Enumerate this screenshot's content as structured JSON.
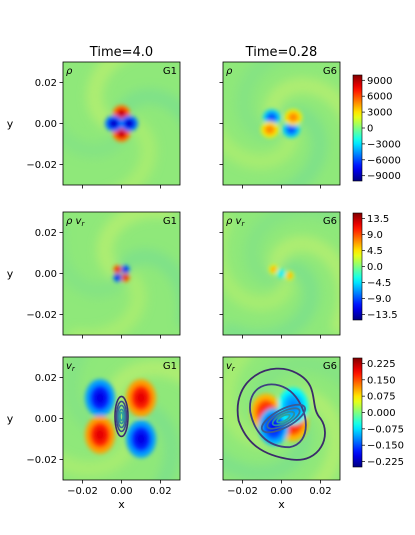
{
  "chart_data": [
    {
      "type": "heatmap",
      "column_title": "Time=4.0",
      "quantity": "ρ",
      "tag": "G1",
      "ylabel": "y",
      "xlabel": "",
      "xlim": [
        -0.03,
        0.03
      ],
      "ylim": [
        -0.03,
        0.03
      ],
      "yticks": [
        -0.02,
        0.0,
        0.02
      ],
      "ytick_labels": [
        "−0.02",
        "0.00",
        "0.02"
      ],
      "features": [
        {
          "x": 0.0,
          "y": 0.005,
          "value": 9000
        },
        {
          "x": 0.0,
          "y": -0.005,
          "value": 9000
        },
        {
          "x": -0.004,
          "y": 0.0,
          "value": -9000
        },
        {
          "x": 0.004,
          "y": 0.0,
          "value": -9000
        }
      ]
    },
    {
      "type": "heatmap",
      "column_title": "Time=0.28",
      "quantity": "ρ",
      "tag": "G6",
      "xlim": [
        -0.03,
        0.03
      ],
      "ylim": [
        -0.03,
        0.03
      ],
      "colorbar": {
        "range": [
          -10000,
          10000
        ],
        "ticks": [
          9000,
          6000,
          3000,
          0,
          -3000,
          -6000,
          -9000
        ],
        "tick_labels": [
          "9000",
          "6000",
          "3000",
          "0",
          "−3000",
          "−6000",
          "−9000"
        ]
      },
      "features": [
        {
          "x": -0.005,
          "y": 0.003,
          "value": -6000
        },
        {
          "x": 0.005,
          "y": -0.003,
          "value": -6000
        },
        {
          "x": -0.006,
          "y": -0.003,
          "value": 5000
        },
        {
          "x": 0.006,
          "y": 0.003,
          "value": 5000
        }
      ]
    },
    {
      "type": "heatmap",
      "quantity": "ρ v_r",
      "tag": "G1",
      "ylabel": "y",
      "xlim": [
        -0.03,
        0.03
      ],
      "ylim": [
        -0.03,
        0.03
      ],
      "yticks": [
        -0.02,
        0.0,
        0.02
      ],
      "ytick_labels": [
        "−0.02",
        "0.00",
        "0.02"
      ],
      "features": [
        {
          "x": -0.002,
          "y": 0.002,
          "value": 13.5
        },
        {
          "x": 0.002,
          "y": -0.002,
          "value": 13.5
        },
        {
          "x": 0.002,
          "y": 0.002,
          "value": -13.5
        },
        {
          "x": -0.002,
          "y": -0.002,
          "value": -13.5
        }
      ]
    },
    {
      "type": "heatmap",
      "quantity": "ρ v_r",
      "tag": "G6",
      "xlim": [
        -0.03,
        0.03
      ],
      "ylim": [
        -0.03,
        0.03
      ],
      "colorbar": {
        "range": [
          -15,
          15
        ],
        "ticks": [
          13.5,
          9.0,
          4.5,
          0.0,
          -4.5,
          -9.0,
          -13.5
        ],
        "tick_labels": [
          "13.5",
          "9.0",
          "4.5",
          "0.0",
          "−4.5",
          "−9.0",
          "−13.5"
        ]
      },
      "features": [
        {
          "x": -0.004,
          "y": 0.002,
          "value": 7
        },
        {
          "x": 0.004,
          "y": -0.001,
          "value": 7
        },
        {
          "x": 0.0,
          "y": 0.0,
          "value": -5
        }
      ]
    },
    {
      "type": "heatmap",
      "quantity": "v_r",
      "tag": "G1",
      "ylabel": "y",
      "xlabel": "x",
      "xlim": [
        -0.03,
        0.03
      ],
      "ylim": [
        -0.03,
        0.03
      ],
      "xticks": [
        -0.02,
        0.0,
        0.02
      ],
      "xtick_labels": [
        "−0.02",
        "0.00",
        "0.02"
      ],
      "yticks": [
        -0.02,
        0.0,
        0.02
      ],
      "ytick_labels": [
        "−0.02",
        "0.00",
        "0.02"
      ],
      "features": [
        {
          "x": -0.011,
          "y": 0.01,
          "value": -0.2
        },
        {
          "x": 0.01,
          "y": 0.01,
          "value": 0.2
        },
        {
          "x": -0.011,
          "y": -0.008,
          "value": 0.2
        },
        {
          "x": 0.01,
          "y": -0.01,
          "value": -0.2
        }
      ],
      "contours": "nested ellipses centred at (0,0), elongated along y"
    },
    {
      "type": "heatmap",
      "quantity": "v_r",
      "tag": "G6",
      "xlabel": "x",
      "xlim": [
        -0.03,
        0.03
      ],
      "ylim": [
        -0.03,
        0.03
      ],
      "xticks": [
        -0.02,
        0.0,
        0.02
      ],
      "xtick_labels": [
        "−0.02",
        "0.00",
        "0.02"
      ],
      "colorbar": {
        "range": [
          -0.25,
          0.25
        ],
        "ticks": [
          0.225,
          0.15,
          0.075,
          0.0,
          -0.075,
          -0.15,
          -0.225
        ],
        "tick_labels": [
          "0.225",
          "0.150",
          "0.075",
          "0.000",
          "−0.075",
          "−0.150",
          "−0.225"
        ]
      },
      "features": [
        {
          "x": -0.008,
          "y": 0.003,
          "value": 0.18
        },
        {
          "x": 0.006,
          "y": -0.002,
          "value": 0.18
        },
        {
          "x": -0.004,
          "y": -0.004,
          "value": -0.18
        },
        {
          "x": 0.006,
          "y": 0.006,
          "value": -0.12
        }
      ],
      "contours": "irregular spiral-shaped contours, inner ones tilted ellipses"
    }
  ],
  "colors": {
    "background_field": "#8fe87a",
    "colormap": "jet",
    "contour_outer": "#3b2a6a",
    "contour_inner": "#2fa2a0"
  }
}
